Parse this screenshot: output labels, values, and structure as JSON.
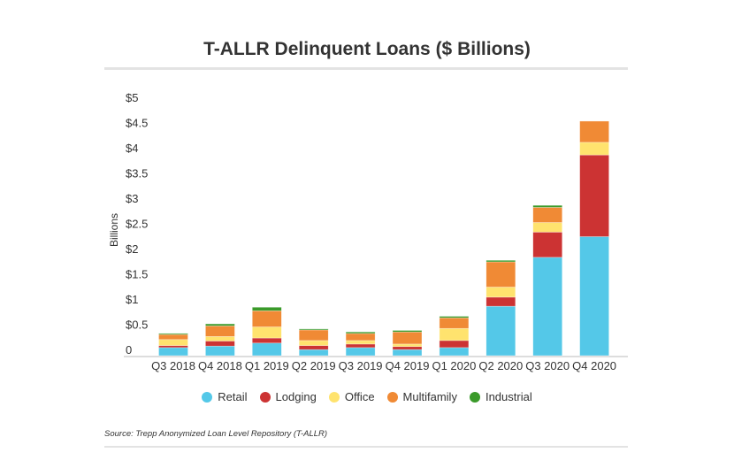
{
  "chart_data": {
    "type": "bar",
    "stacked": true,
    "title": "T-ALLR Delinquent Loans ($ Billions)",
    "xlabel": "",
    "ylabel": "Billions",
    "ylim": [
      0,
      5
    ],
    "yticks": [
      0,
      0.5,
      1,
      1.5,
      2,
      2.5,
      3,
      3.5,
      4,
      4.5,
      5
    ],
    "ytick_labels": [
      "0",
      "$0.5",
      "$1",
      "$1.5",
      "$2",
      "$2.5",
      "$3",
      "$3.5",
      "$4",
      "$4.5",
      "$5"
    ],
    "categories": [
      "Q3 2018",
      "Q4 2018",
      "Q1 2019",
      "Q2 2019",
      "Q3 2019",
      "Q4 2019",
      "Q1 2020",
      "Q2 2020",
      "Q3 2020",
      "Q4 2020"
    ],
    "series": [
      {
        "name": "Retail",
        "color": "#54c8e8",
        "values": [
          0.16,
          0.19,
          0.25,
          0.12,
          0.16,
          0.12,
          0.16,
          0.98,
          1.95,
          2.36
        ]
      },
      {
        "name": "Lodging",
        "color": "#cc3333",
        "values": [
          0.04,
          0.1,
          0.1,
          0.08,
          0.07,
          0.06,
          0.14,
          0.18,
          0.5,
          1.62
        ]
      },
      {
        "name": "Office",
        "color": "#ffe36e",
        "values": [
          0.12,
          0.09,
          0.22,
          0.1,
          0.07,
          0.05,
          0.24,
          0.2,
          0.19,
          0.25
        ]
      },
      {
        "name": "Multifamily",
        "color": "#f08a35",
        "values": [
          0.1,
          0.21,
          0.32,
          0.21,
          0.14,
          0.24,
          0.21,
          0.5,
          0.3,
          0.42
        ]
      },
      {
        "name": "Industrial",
        "color": "#3a9a2a",
        "values": [
          0.02,
          0.04,
          0.07,
          0.02,
          0.03,
          0.03,
          0.03,
          0.03,
          0.04,
          0.0
        ]
      }
    ],
    "legend_position": "bottom",
    "grid": false,
    "source": "Source: Trepp Anonymized Loan Level Repository (T-ALLR)"
  }
}
